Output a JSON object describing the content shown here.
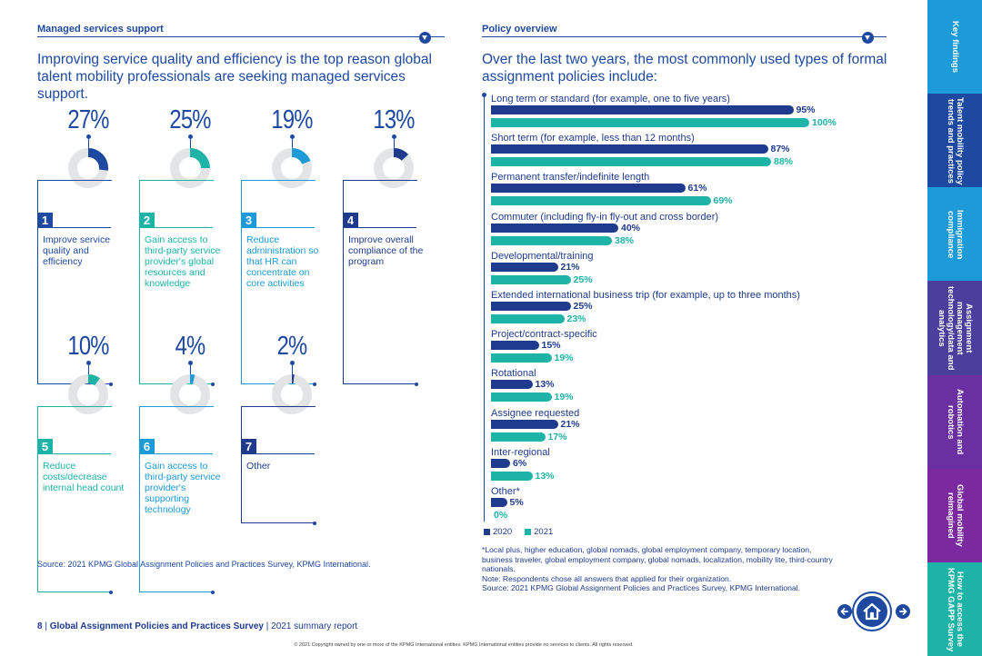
{
  "left": {
    "title": "Managed services support",
    "intro_line1": "Improving service quality and efficiency is the top reason global",
    "intro_line2": "talent mobility professionals are seeking managed services support.",
    "stats": [
      {
        "pct_label": "27%",
        "value": 27,
        "num": "1",
        "label": "Improve service quality and efficiency",
        "color": "#1e49a0"
      },
      {
        "pct_label": "25%",
        "value": 25,
        "num": "2",
        "label": "Gain access to third-party service provider's global resources and knowledge",
        "color": "#1db3a7"
      },
      {
        "pct_label": "19%",
        "value": 19,
        "num": "3",
        "label": "Reduce administration so that HR can concentrate on core activities",
        "color": "#1d9ad8"
      },
      {
        "pct_label": "13%",
        "value": 13,
        "num": "4",
        "label": "Improve overall compliance of the program",
        "color": "#1e3b8e"
      },
      {
        "pct_label": "10%",
        "value": 10,
        "num": "5",
        "label": "Reduce costs/decrease internal head count",
        "color": "#1db3a7"
      },
      {
        "pct_label": "4%",
        "value": 4,
        "num": "6",
        "label": "Gain access to third-party service provider's supporting technology",
        "color": "#1d9ad8"
      },
      {
        "pct_label": "2%",
        "value": 2,
        "num": "7",
        "label": "Other",
        "color": "#1e3b8e"
      }
    ],
    "source": "Source: 2021 KPMG Global Assignment Policies and Practices Survey, KPMG International."
  },
  "right": {
    "title": "Policy overview",
    "intro_line1": "Over the last two years, the most commonly used types of formal",
    "intro_line2": "assignment policies include:",
    "legend_2020": "2020",
    "legend_2021": "2021",
    "footnote1": "*Local plus, higher education, global nomads, global employment company, temporary location, business traveler, global employment company, global nomads, localization, mobility lite, third-country nationals.",
    "footnote2": "Note: Respondents chose all answers that applied for their organization.",
    "footnote3": "Source: 2021 KPMG Global Assignment Policies and Practices Survey, KPMG International."
  },
  "chart_data": {
    "type": "bar",
    "orientation": "horizontal",
    "title": "Over the last two years, the most commonly used types of formal assignment policies include:",
    "categories": [
      "Long term or standard (for example, one to five years)",
      "Short term (for example, less than 12 months)",
      "Permanent transfer/indefinite length",
      "Commuter (including fly-in fly-out and cross border)",
      "Developmental/training",
      "Extended international business trip (for example, up to three months)",
      "Project/contract-specific",
      "Rotational",
      "Assignee requested",
      "Inter-regional",
      "Other*"
    ],
    "series": [
      {
        "name": "2020",
        "color": "#1e3b8e",
        "values": [
          95,
          87,
          61,
          40,
          21,
          25,
          15,
          13,
          21,
          6,
          5
        ]
      },
      {
        "name": "2021",
        "color": "#1db3a7",
        "values": [
          100,
          88,
          69,
          38,
          25,
          23,
          19,
          19,
          17,
          13,
          0
        ]
      }
    ],
    "xlim": [
      0,
      100
    ],
    "legend": "bottom-left"
  },
  "footer": {
    "page_num": "8",
    "sep": " | ",
    "report_title": "Global Assignment Policies and Practices Survey",
    "sep2": " | ",
    "report_sub": "2021 summary report",
    "copyright": "© 2021 Copyright owned by one or more of the KPMG International entities. KPMG International entities provide no services to clients. All rights reserved."
  },
  "tabs": [
    {
      "label": "Key findings",
      "color": "#1d9ad8"
    },
    {
      "label": "Talent mobility policy trends and practices",
      "color": "#1e49a0"
    },
    {
      "label": "Immigration compliance",
      "color": "#1d9ad8"
    },
    {
      "label": "Assignment management technology/data and analytics",
      "color": "#4a3f9c"
    },
    {
      "label": "Automation and robotics",
      "color": "#6a2fa0"
    },
    {
      "label": "Global mobility reimagined",
      "color": "#7a2a9e"
    },
    {
      "label": "How to access the KPMG GAPP Survey",
      "color": "#1db3a7"
    }
  ]
}
